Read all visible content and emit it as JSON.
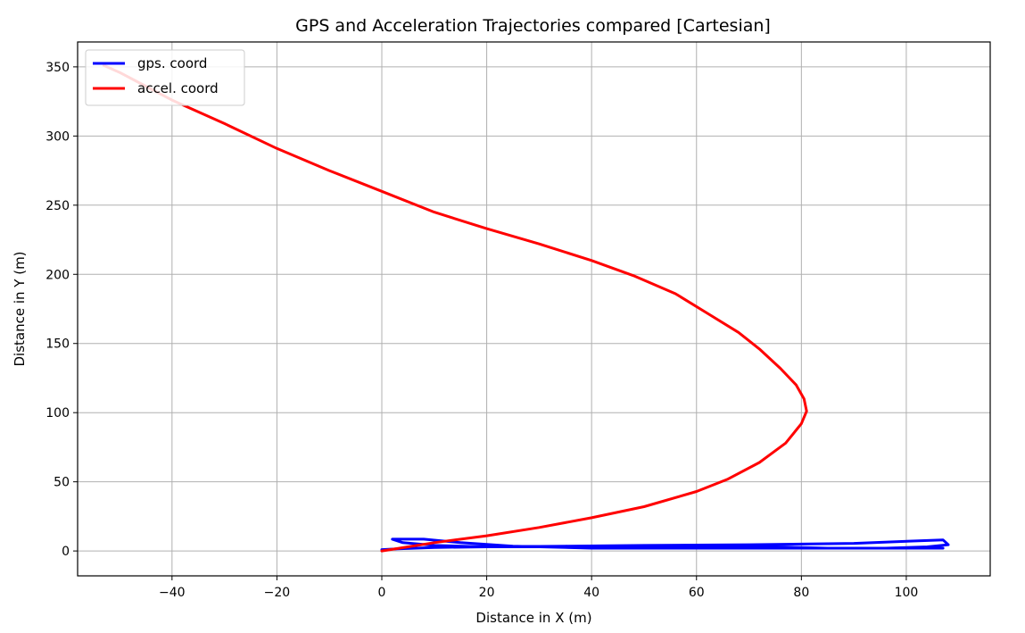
{
  "chart_data": {
    "type": "line",
    "title": "GPS and Acceleration Trajectories compared [Cartesian]",
    "xlabel": "Distance in X (m)",
    "ylabel": "Distance in Y (m)",
    "xlim": [
      -58,
      116
    ],
    "ylim": [
      -18,
      368
    ],
    "xticks": [
      -40,
      -20,
      0,
      20,
      40,
      60,
      80,
      100
    ],
    "yticks": [
      0,
      50,
      100,
      150,
      200,
      250,
      300,
      350
    ],
    "xtick_labels": [
      "−40",
      "−20",
      "0",
      "20",
      "40",
      "60",
      "80",
      "100"
    ],
    "ytick_labels": [
      "0",
      "50",
      "100",
      "150",
      "200",
      "250",
      "300",
      "350"
    ],
    "grid": true,
    "legend_position": "top-left",
    "series": [
      {
        "name": "gps. coord",
        "color": "#0000ff",
        "x": [
          0,
          3,
          10,
          20,
          30,
          45,
          60,
          75,
          85,
          96,
          104,
          108,
          107,
          90,
          70,
          50,
          35,
          20,
          10,
          4,
          2,
          8,
          15,
          25,
          40,
          60,
          80,
          100,
          107
        ],
        "y": [
          1,
          1.5,
          2.5,
          3,
          3,
          3,
          3,
          3,
          2,
          2,
          3,
          4.5,
          8,
          5.5,
          4.5,
          4,
          3.5,
          3,
          4,
          6,
          8.5,
          8.5,
          6,
          3.5,
          2,
          2,
          2,
          2,
          2
        ]
      },
      {
        "name": "accel. coord",
        "color": "#ff0000",
        "x": [
          0,
          5,
          10,
          20,
          30,
          40,
          50,
          60,
          66,
          72,
          77,
          80,
          81,
          80.5,
          79,
          76,
          72,
          68,
          62,
          56,
          48,
          40,
          30,
          20,
          10,
          0,
          -10,
          -20,
          -30,
          -40,
          -46,
          -50,
          -53
        ],
        "y": [
          0,
          3,
          6,
          11,
          17,
          24,
          32,
          43,
          52,
          64,
          78,
          92,
          101,
          110,
          120,
          132,
          146,
          158,
          172,
          186,
          199,
          210,
          222,
          233,
          245,
          260,
          275,
          291,
          309,
          326,
          338,
          346,
          351
        ]
      }
    ]
  }
}
